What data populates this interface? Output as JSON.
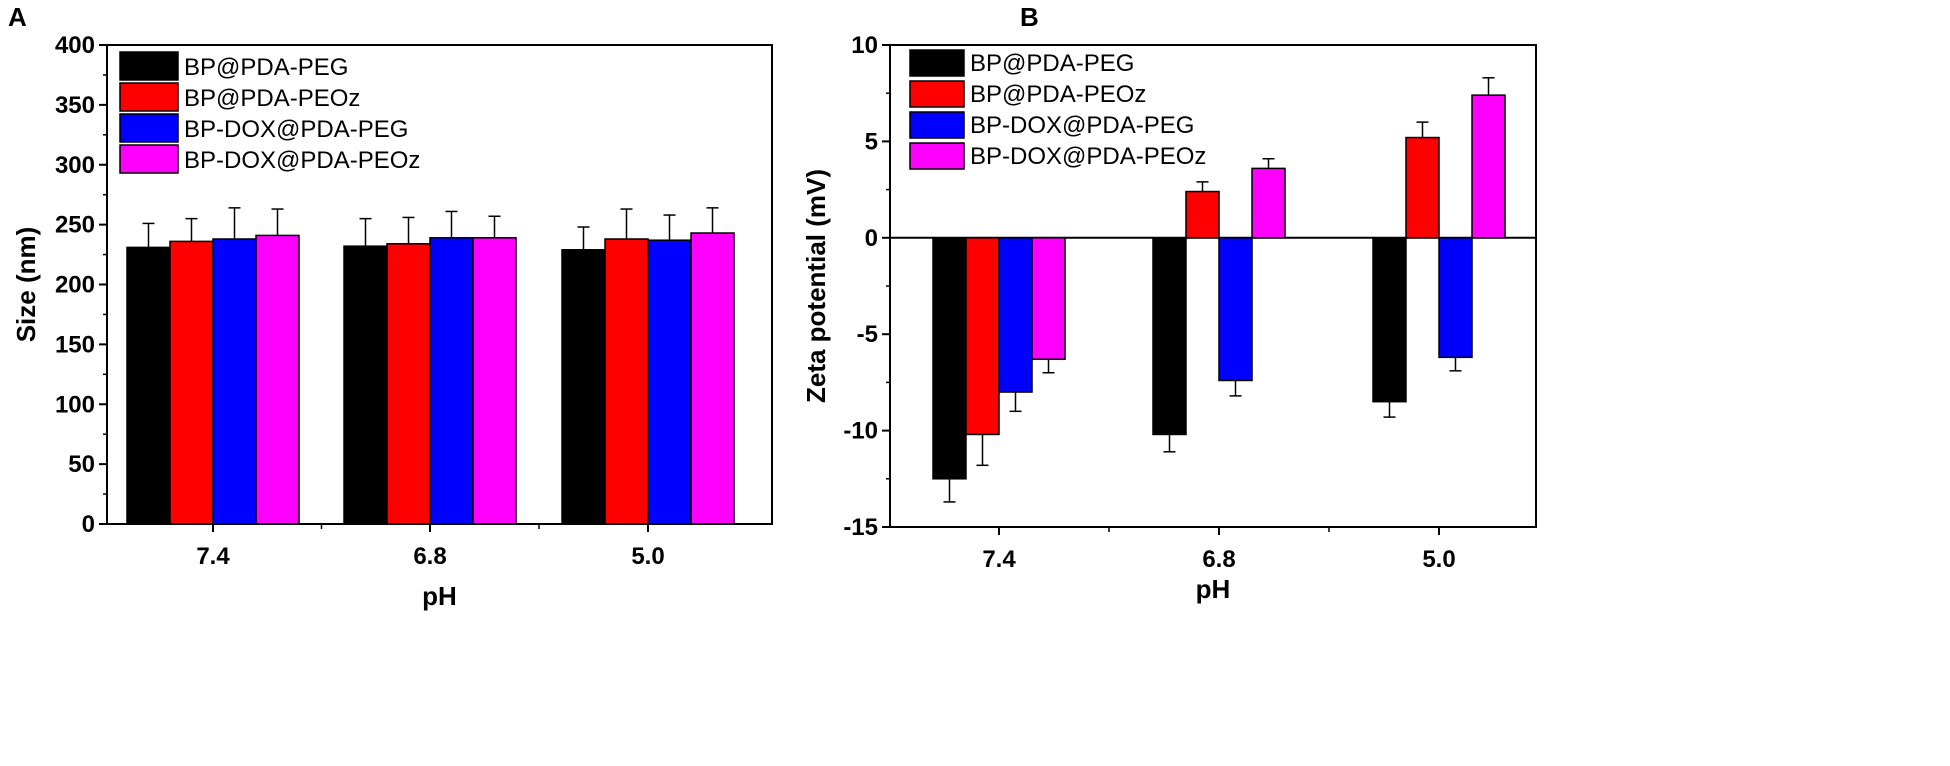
{
  "panels": {
    "A": {
      "label": "A"
    },
    "B": {
      "label": "B"
    }
  },
  "chart_data": [
    {
      "id": "A",
      "type": "bar",
      "xlabel": "pH",
      "ylabel": "Size (nm)",
      "ylim": [
        0,
        400
      ],
      "yticks": [
        0,
        50,
        100,
        150,
        200,
        250,
        300,
        350,
        400
      ],
      "categories": [
        "7.4",
        "6.8",
        "5.0"
      ],
      "legend_position": "top-left",
      "series": [
        {
          "name": "BP@PDA-PEG",
          "color": "#000000",
          "values": [
            231,
            232,
            229
          ],
          "errors": [
            20,
            23,
            19
          ]
        },
        {
          "name": "BP@PDA-PEOz",
          "color": "#ff0000",
          "values": [
            236,
            234,
            238
          ],
          "errors": [
            19,
            22,
            25
          ]
        },
        {
          "name": "BP-DOX@PDA-PEG",
          "color": "#0000ff",
          "values": [
            238,
            239,
            237
          ],
          "errors": [
            26,
            22,
            21
          ]
        },
        {
          "name": "BP-DOX@PDA-PEOz",
          "color": "#ff00ff",
          "values": [
            241,
            239,
            243
          ],
          "errors": [
            22,
            18,
            21
          ]
        }
      ]
    },
    {
      "id": "B",
      "type": "bar",
      "xlabel": "pH",
      "ylabel": "Zeta potential (mV)",
      "ylim": [
        -15,
        10
      ],
      "yticks": [
        -15,
        -10,
        -5,
        0,
        5,
        10
      ],
      "categories": [
        "7.4",
        "6.8",
        "5.0"
      ],
      "legend_position": "top-left",
      "series": [
        {
          "name": "BP@PDA-PEG",
          "color": "#000000",
          "values": [
            -12.5,
            -10.2,
            -8.5
          ],
          "errors": [
            1.2,
            0.9,
            0.8
          ]
        },
        {
          "name": "BP@PDA-PEOz",
          "color": "#ff0000",
          "values": [
            -10.2,
            2.4,
            5.2
          ],
          "errors": [
            1.6,
            0.5,
            0.8
          ]
        },
        {
          "name": "BP-DOX@PDA-PEG",
          "color": "#0000ff",
          "values": [
            -8.0,
            -7.4,
            -6.2
          ],
          "errors": [
            1.0,
            0.8,
            0.7
          ]
        },
        {
          "name": "BP-DOX@PDA-PEOz",
          "color": "#ff00ff",
          "values": [
            -6.3,
            3.6,
            7.4
          ],
          "errors": [
            0.7,
            0.5,
            0.9
          ]
        }
      ]
    }
  ]
}
